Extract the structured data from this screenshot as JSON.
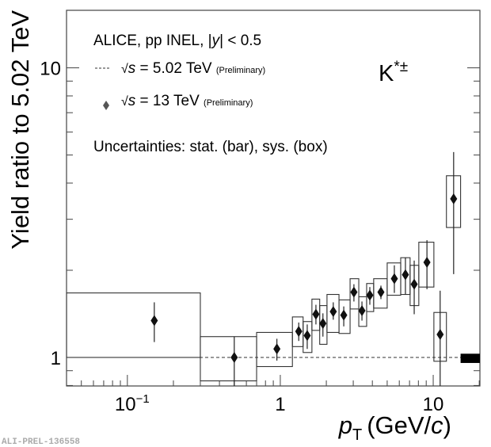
{
  "chart_data": {
    "type": "scatter",
    "title": "",
    "xlabel_italic": "p",
    "xlabel_sub": "T",
    "xlabel_units": "(GeV/",
    "xlabel_units_italic": "c",
    "xlabel_units_close": ")",
    "ylabel": "Yield ratio to 5.02 TeV",
    "xscale": "log",
    "yscale": "log",
    "xlim": [
      0.04,
      20.2
    ],
    "ylim": [
      0.797,
      15.8
    ],
    "xticks": [
      {
        "value": 0.1,
        "label_base": "10",
        "label_exp": "−1"
      },
      {
        "value": 1,
        "label_base": "1",
        "label_exp": ""
      },
      {
        "value": 10,
        "label_base": "10",
        "label_exp": ""
      }
    ],
    "yticks": [
      {
        "value": 1,
        "label": "1"
      },
      {
        "value": 10,
        "label": "10"
      }
    ],
    "legend": {
      "header_prefix": "ALICE, pp INEL, |",
      "header_italic": "y",
      "header_suffix": "| < 0.5",
      "entries": [
        {
          "marker": "dashed-line",
          "sqrt": "√",
          "s": "s",
          "label": " = 5.02 TeV ",
          "note": "(Preliminary)"
        },
        {
          "marker": "diamond",
          "sqrt": "√",
          "s": "s",
          "label": " = 13 TeV ",
          "note": "(Preliminary)"
        }
      ],
      "placement": "top-left"
    },
    "uncertainty_note": "Uncertainties: stat. (bar), sys. (box)",
    "particle_label": "K",
    "particle_sup": "*±",
    "reference_line": {
      "y": 1,
      "style": "dashed",
      "label": "5.02 TeV"
    },
    "normalization_box": {
      "x_low": 15.1,
      "x_high": 20.2,
      "y_low": 0.957,
      "y_high": 1.03
    },
    "series": [
      {
        "name": "13 TeV (Preliminary)",
        "marker": "diamond",
        "points": [
          {
            "x": 0.15,
            "y": 1.34,
            "stat_low": 1.13,
            "stat_high": 1.55,
            "sys_xlow": 0.04,
            "sys_xhigh": 0.3,
            "sys_low": 1.0,
            "sys_high": 1.67
          },
          {
            "x": 0.5,
            "y": 1.0,
            "stat_low": 0.79,
            "stat_high": 1.18,
            "sys_xlow": 0.3,
            "sys_xhigh": 0.7,
            "sys_low": 0.83,
            "sys_high": 1.18
          },
          {
            "x": 0.95,
            "y": 1.07,
            "stat_low": 0.975,
            "stat_high": 1.16,
            "sys_xlow": 0.7,
            "sys_xhigh": 1.2,
            "sys_low": 0.93,
            "sys_high": 1.22
          },
          {
            "x": 1.32,
            "y": 1.23,
            "stat_low": 1.14,
            "stat_high": 1.32,
            "sys_xlow": 1.2,
            "sys_xhigh": 1.41,
            "sys_low": 1.09,
            "sys_high": 1.38
          },
          {
            "x": 1.5,
            "y": 1.19,
            "stat_low": 1.07,
            "stat_high": 1.3,
            "sys_xlow": 1.41,
            "sys_xhigh": 1.61,
            "sys_low": 1.04,
            "sys_high": 1.33
          },
          {
            "x": 1.71,
            "y": 1.41,
            "stat_low": 1.3,
            "stat_high": 1.52,
            "sys_xlow": 1.61,
            "sys_xhigh": 1.81,
            "sys_low": 1.24,
            "sys_high": 1.59
          },
          {
            "x": 1.9,
            "y": 1.31,
            "stat_low": 1.18,
            "stat_high": 1.42,
            "sys_xlow": 1.81,
            "sys_xhigh": 2.02,
            "sys_low": 1.11,
            "sys_high": 1.51
          },
          {
            "x": 2.22,
            "y": 1.44,
            "stat_low": 1.35,
            "stat_high": 1.55,
            "sys_xlow": 2.02,
            "sys_xhigh": 2.42,
            "sys_low": 1.22,
            "sys_high": 1.65
          },
          {
            "x": 2.6,
            "y": 1.4,
            "stat_low": 1.28,
            "stat_high": 1.5,
            "sys_xlow": 2.42,
            "sys_xhigh": 2.86,
            "sys_low": 1.21,
            "sys_high": 1.58
          },
          {
            "x": 3.03,
            "y": 1.68,
            "stat_low": 1.56,
            "stat_high": 1.79,
            "sys_xlow": 2.86,
            "sys_xhigh": 3.26,
            "sys_low": 1.47,
            "sys_high": 1.87
          },
          {
            "x": 3.42,
            "y": 1.45,
            "stat_low": 1.34,
            "stat_high": 1.56,
            "sys_xlow": 3.26,
            "sys_xhigh": 3.67,
            "sys_low": 1.28,
            "sys_high": 1.62
          },
          {
            "x": 3.85,
            "y": 1.64,
            "stat_low": 1.52,
            "stat_high": 1.75,
            "sys_xlow": 3.67,
            "sys_xhigh": 4.08,
            "sys_low": 1.44,
            "sys_high": 1.8
          },
          {
            "x": 4.55,
            "y": 1.68,
            "stat_low": 1.59,
            "stat_high": 1.77,
            "sys_xlow": 4.08,
            "sys_xhigh": 5.0,
            "sys_low": 1.48,
            "sys_high": 1.87
          },
          {
            "x": 5.57,
            "y": 1.87,
            "stat_low": 1.67,
            "stat_high": 2.08,
            "sys_xlow": 5.0,
            "sys_xhigh": 6.13,
            "sys_low": 1.64,
            "sys_high": 2.12
          },
          {
            "x": 6.58,
            "y": 1.93,
            "stat_low": 1.65,
            "stat_high": 2.21,
            "sys_xlow": 6.13,
            "sys_xhigh": 7.06,
            "sys_low": 1.65,
            "sys_high": 2.21
          },
          {
            "x": 7.51,
            "y": 1.79,
            "stat_low": 1.41,
            "stat_high": 2.16,
            "sys_xlow": 7.06,
            "sys_xhigh": 8.05,
            "sys_low": 1.51,
            "sys_high": 2.08
          },
          {
            "x": 9.1,
            "y": 2.13,
            "stat_low": 1.72,
            "stat_high": 2.54,
            "sys_xlow": 8.05,
            "sys_xhigh": 10.1,
            "sys_low": 1.75,
            "sys_high": 2.5
          },
          {
            "x": 11.1,
            "y": 1.2,
            "stat_low": 0.79,
            "stat_high": 1.7,
            "sys_xlow": 10.1,
            "sys_xhigh": 12.2,
            "sys_low": 0.97,
            "sys_high": 1.43
          },
          {
            "x": 13.6,
            "y": 3.53,
            "stat_low": 1.94,
            "stat_high": 5.12,
            "sys_xlow": 12.2,
            "sys_xhigh": 15.1,
            "sys_low": 2.81,
            "sys_high": 4.24
          }
        ]
      }
    ]
  },
  "footer": {
    "figure_id": "ALI-PREL-136558"
  }
}
